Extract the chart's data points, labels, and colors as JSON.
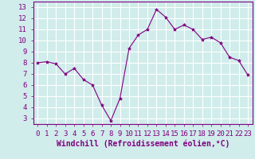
{
  "x": [
    0,
    1,
    2,
    3,
    4,
    5,
    6,
    7,
    8,
    9,
    10,
    11,
    12,
    13,
    14,
    15,
    16,
    17,
    18,
    19,
    20,
    21,
    22,
    23
  ],
  "y": [
    8.0,
    8.1,
    7.9,
    7.0,
    7.5,
    6.5,
    6.0,
    4.2,
    2.8,
    4.8,
    9.3,
    10.5,
    11.0,
    12.8,
    12.1,
    11.0,
    11.4,
    11.0,
    10.1,
    10.3,
    9.8,
    8.5,
    8.2,
    6.9
  ],
  "line_color": "#800080",
  "marker": "*",
  "marker_size": 3,
  "bg_color": "#d0eceb",
  "grid_color": "#ffffff",
  "xlabel": "Windchill (Refroidissement éolien,°C)",
  "xlabel_color": "#800080",
  "tick_color": "#800080",
  "axis_color": "#800080",
  "ylim": [
    2.5,
    13.5
  ],
  "xlim": [
    -0.5,
    23.5
  ],
  "yticks": [
    3,
    4,
    5,
    6,
    7,
    8,
    9,
    10,
    11,
    12,
    13
  ],
  "xticks": [
    0,
    1,
    2,
    3,
    4,
    5,
    6,
    7,
    8,
    9,
    10,
    11,
    12,
    13,
    14,
    15,
    16,
    17,
    18,
    19,
    20,
    21,
    22,
    23
  ],
  "font_size": 6.5,
  "label_fontsize": 7.0
}
